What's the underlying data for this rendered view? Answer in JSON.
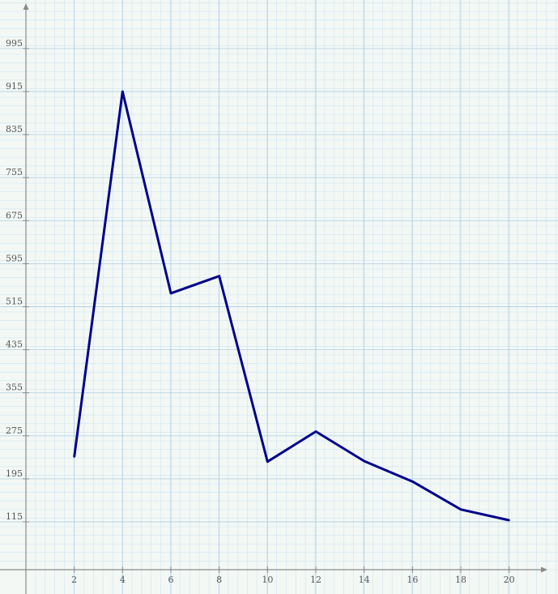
{
  "chart_data": {
    "type": "line",
    "x": [
      2,
      4,
      6,
      8,
      10,
      12,
      14,
      16,
      18,
      20
    ],
    "series": [
      {
        "values": [
          236,
          915,
          540,
          572,
          227,
          283,
          228,
          190,
          138,
          118
        ],
        "color": "#00008b"
      }
    ],
    "xticks": [
      "2",
      "4",
      "6",
      "8",
      "10",
      "12",
      "14",
      "16",
      "18",
      "20"
    ],
    "yticks": [
      "115",
      "195",
      "275",
      "355",
      "435",
      "515",
      "595",
      "675",
      "755",
      "835",
      "915",
      "995"
    ],
    "xlim": [
      0,
      21.8
    ],
    "ylim": [
      32,
      1085
    ],
    "grid": true,
    "title": "",
    "xlabel": "",
    "ylabel": ""
  }
}
